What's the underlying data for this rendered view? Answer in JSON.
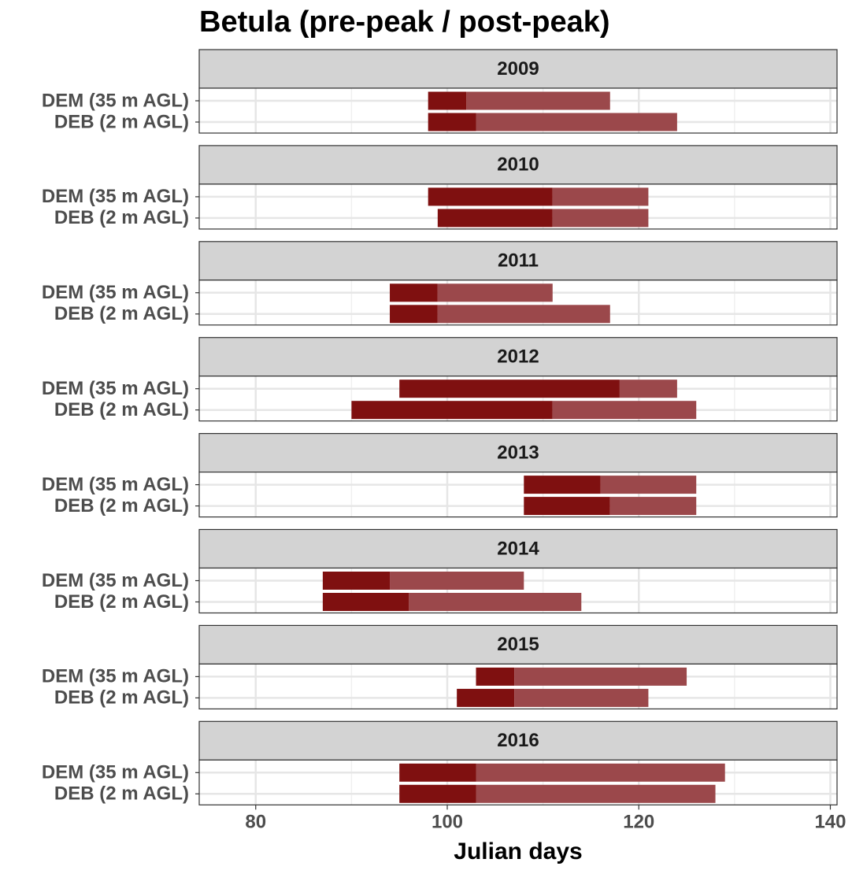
{
  "chart_data": {
    "type": "faceted_range",
    "title": "Betula (pre-peak / post-peak)",
    "x_label": "Julian days",
    "categories": [
      "DEM (35 m AGL)",
      "DEB (2 m AGL)"
    ],
    "facets": [
      {
        "label": "2009",
        "start": [
          98,
          98
        ],
        "peak": [
          102,
          103
        ],
        "end": [
          117,
          124
        ]
      },
      {
        "label": "2010",
        "start": [
          98,
          99
        ],
        "peak": [
          111,
          111
        ],
        "end": [
          121,
          121
        ]
      },
      {
        "label": "2011",
        "start": [
          94,
          94
        ],
        "peak": [
          99,
          99
        ],
        "end": [
          111,
          117
        ]
      },
      {
        "label": "2012",
        "start": [
          95,
          90
        ],
        "peak": [
          118,
          111
        ],
        "end": [
          124,
          126
        ]
      },
      {
        "label": "2013",
        "start": [
          108,
          108
        ],
        "peak": [
          116,
          117
        ],
        "end": [
          126,
          126
        ]
      },
      {
        "label": "2014",
        "start": [
          87,
          87
        ],
        "peak": [
          94,
          96
        ],
        "end": [
          108,
          114
        ]
      },
      {
        "label": "2015",
        "start": [
          103,
          101
        ],
        "peak": [
          107,
          107
        ],
        "end": [
          125,
          121
        ]
      },
      {
        "label": "2016",
        "start": [
          95,
          95
        ],
        "peak": [
          103,
          103
        ],
        "end": [
          129,
          128
        ]
      }
    ],
    "xlim": [
      74.1,
      140.7
    ],
    "xticks": [
      80,
      100,
      120,
      140
    ],
    "x_minor_ticks": [
      90,
      110,
      130
    ],
    "grid": true,
    "pre_color": "#7f1010",
    "post_color": "#9b484b"
  }
}
